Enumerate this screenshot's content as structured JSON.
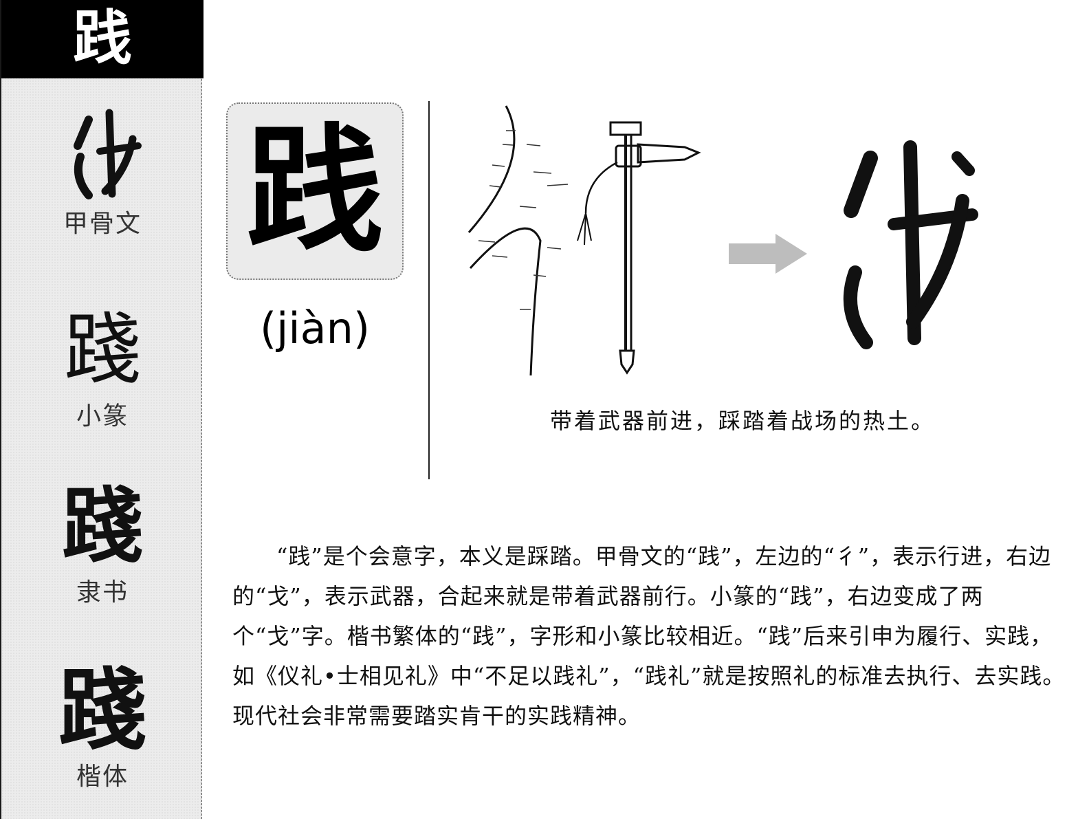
{
  "title": {
    "character": "践"
  },
  "sidebar": {
    "scripts": [
      {
        "glyph": "𢦏",
        "label": "甲骨文"
      },
      {
        "glyph": "踐",
        "label": "小篆"
      },
      {
        "glyph": "踐",
        "label": "隶书"
      },
      {
        "glyph": "踐",
        "label": "楷体"
      }
    ]
  },
  "main": {
    "character": "践",
    "pinyin": "(jiàn)",
    "caption": "带着武器前进，踩踏着战场的热土。",
    "paragraph": "“践”是个会意字，本义是踩踏。甲骨文的“践”，左边的“彳”，表示行进，右边的“戈”，表示武器，合起来就是带着武器前行。小篆的“践”，右边变成了两个“戈”字。楷书繁体的“践”，字形和小篆比较相近。“践”后来引申为履行、实践，如《仪礼•士相见礼》中“不足以践礼”，“践礼”就是按照礼的标准去执行、去实践。现代社会非常需要踏实肯干的实践精神。"
  },
  "icons": {
    "illustration": "road-and-dagger-axe-illustration",
    "arrow": "right-arrow-icon",
    "oracle": "oracle-bone-glyph"
  },
  "colors": {
    "title_bg": "#000000",
    "sidebar_bg": "#ececec",
    "arrow": "#bdbdbd"
  }
}
